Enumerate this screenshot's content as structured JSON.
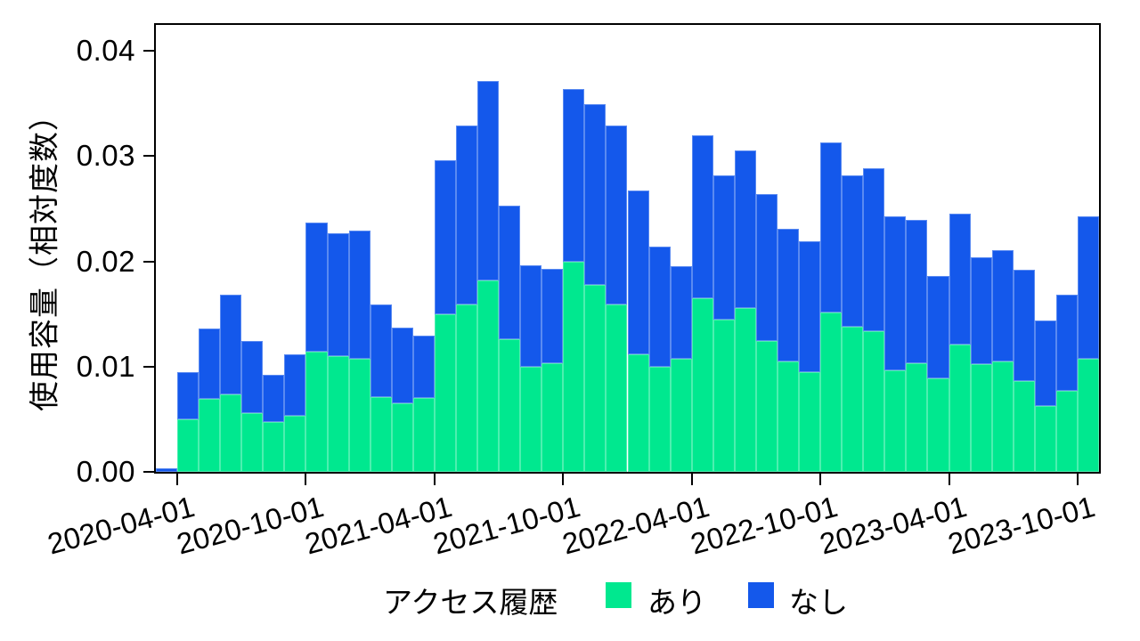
{
  "chart_data": {
    "type": "bar",
    "stacked": true,
    "title": "",
    "xlabel": "",
    "ylabel": "使用容量（相対度数）",
    "ylim": [
      0,
      0.04
    ],
    "grid": false,
    "legend_position": "bottom",
    "legend_title": "アクセス履歴",
    "categories": [
      "2020-03",
      "2020-04",
      "2020-05",
      "2020-06",
      "2020-07",
      "2020-08",
      "2020-09",
      "2020-10",
      "2020-11",
      "2020-12",
      "2021-01",
      "2021-02",
      "2021-03",
      "2021-04",
      "2021-05",
      "2021-06",
      "2021-07",
      "2021-08",
      "2021-09",
      "2021-10",
      "2021-11",
      "2021-12",
      "2022-01",
      "2022-02",
      "2022-03",
      "2022-04",
      "2022-05",
      "2022-06",
      "2022-07",
      "2022-08",
      "2022-09",
      "2022-10",
      "2022-11",
      "2022-12",
      "2023-01",
      "2023-02",
      "2023-03",
      "2023-04",
      "2023-05",
      "2023-06",
      "2023-07",
      "2023-08",
      "2023-09",
      "2023-10"
    ],
    "series": [
      {
        "name": "あり",
        "color": "#00E88F",
        "values": [
          0.0,
          0.005,
          0.0069,
          0.0074,
          0.0056,
          0.0047,
          0.0053,
          0.0114,
          0.011,
          0.0107,
          0.0071,
          0.0065,
          0.007,
          0.015,
          0.0159,
          0.0182,
          0.0126,
          0.01,
          0.0103,
          0.02,
          0.0178,
          0.0159,
          0.0112,
          0.01,
          0.0107,
          0.0165,
          0.0145,
          0.0156,
          0.0124,
          0.0105,
          0.0095,
          0.0151,
          0.0138,
          0.0134,
          0.0096,
          0.0103,
          0.0089,
          0.0121,
          0.0102,
          0.0105,
          0.0086,
          0.0063,
          0.0077,
          0.0107
        ]
      },
      {
        "name": "なし",
        "color": "#1458EB",
        "values": [
          0.0003,
          0.0045,
          0.0067,
          0.0094,
          0.0068,
          0.0045,
          0.0059,
          0.0123,
          0.0117,
          0.0122,
          0.0088,
          0.0072,
          0.0059,
          0.0146,
          0.017,
          0.0189,
          0.0127,
          0.0096,
          0.009,
          0.0164,
          0.0171,
          0.017,
          0.0155,
          0.0114,
          0.0088,
          0.0155,
          0.0137,
          0.0149,
          0.014,
          0.0126,
          0.0124,
          0.0162,
          0.0144,
          0.0154,
          0.0147,
          0.0136,
          0.0097,
          0.0124,
          0.0102,
          0.0106,
          0.0106,
          0.0081,
          0.0091,
          0.0136
        ]
      }
    ],
    "y_ticks": [
      {
        "value": 0.0,
        "label": "0.00"
      },
      {
        "value": 0.01,
        "label": "0.01"
      },
      {
        "value": 0.02,
        "label": "0.02"
      },
      {
        "value": 0.03,
        "label": "0.03"
      },
      {
        "value": 0.04,
        "label": "0.04"
      }
    ],
    "x_ticks": [
      {
        "index": 1,
        "label": "2020-04-01"
      },
      {
        "index": 7,
        "label": "2020-10-01"
      },
      {
        "index": 13,
        "label": "2021-04-01"
      },
      {
        "index": 19,
        "label": "2021-10-01"
      },
      {
        "index": 25,
        "label": "2022-04-01"
      },
      {
        "index": 31,
        "label": "2022-10-01"
      },
      {
        "index": 37,
        "label": "2023-04-01"
      },
      {
        "index": 43,
        "label": "2023-10-01"
      }
    ]
  },
  "colors": {
    "background": "#ffffff",
    "axis": "#000000",
    "text": "#000000",
    "series_ari": "#00E88F",
    "series_nashi": "#1458EB"
  }
}
